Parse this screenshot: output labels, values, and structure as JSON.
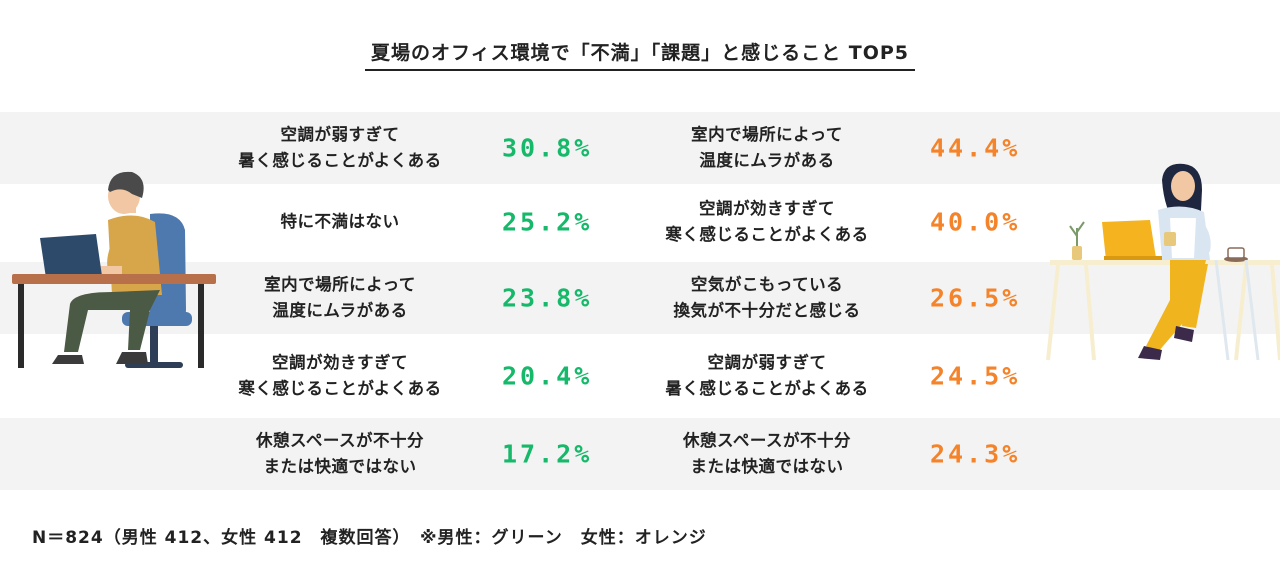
{
  "title": "夏場のオフィス環境で「不満」「課題」と感じること TOP5",
  "colors": {
    "male": "#16b86a",
    "female": "#f4832a",
    "band": "#f3f3f3"
  },
  "rows": [
    {
      "male_label": [
        "空調が弱すぎて",
        "暑く感じることがよくある"
      ],
      "male_pct": "30.8%",
      "female_label": [
        "室内で場所によって",
        "温度にムラがある"
      ],
      "female_pct": "44.4%"
    },
    {
      "male_label": [
        "特に不満はない"
      ],
      "male_pct": "25.2%",
      "female_label": [
        "空調が効きすぎて",
        "寒く感じることがよくある"
      ],
      "female_pct": "40.0%"
    },
    {
      "male_label": [
        "室内で場所によって",
        "温度にムラがある"
      ],
      "male_pct": "23.8%",
      "female_label": [
        "空気がこもっている",
        "換気が不十分だと感じる"
      ],
      "female_pct": "26.5%"
    },
    {
      "male_label": [
        "空調が効きすぎて",
        "寒く感じることがよくある"
      ],
      "male_pct": "20.4%",
      "female_label": [
        "空調が弱すぎて",
        "暑く感じることがよくある"
      ],
      "female_pct": "24.5%"
    },
    {
      "male_label": [
        "休憩スペースが不十分",
        "または快適ではない"
      ],
      "male_pct": "17.2%",
      "female_label": [
        "休憩スペースが不十分",
        "または快適ではない"
      ],
      "female_pct": "24.3%"
    }
  ],
  "footnote": "N＝824（男性 412、女性 412　複数回答）　※男性：グリーン　女性：オレンジ"
}
